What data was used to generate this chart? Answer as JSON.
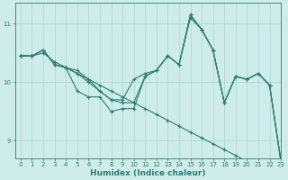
{
  "background_color": "#ceecea",
  "grid_color": "#aed8d5",
  "line_color": "#2e7d6e",
  "xlabel": "Humidex (Indice chaleur)",
  "xlim": [
    -0.5,
    23
  ],
  "ylim": [
    8.7,
    11.35
  ],
  "yticks": [
    9,
    10,
    11
  ],
  "xticks": [
    0,
    1,
    2,
    3,
    4,
    5,
    6,
    7,
    8,
    9,
    10,
    11,
    12,
    13,
    14,
    15,
    16,
    17,
    18,
    19,
    20,
    21,
    22,
    23
  ],
  "series": [
    {
      "x": [
        0,
        1,
        2,
        3,
        4,
        5,
        6,
        7,
        8,
        9,
        10,
        11,
        12,
        13,
        14,
        15,
        16,
        17,
        18,
        19,
        20,
        21,
        22,
        23
      ],
      "y": [
        10.45,
        10.45,
        10.5,
        10.35,
        10.25,
        10.15,
        10.05,
        9.95,
        9.85,
        9.75,
        9.65,
        9.55,
        9.45,
        9.35,
        9.25,
        9.15,
        9.05,
        8.95,
        8.85,
        8.75,
        8.65,
        8.65,
        8.65,
        8.65
      ]
    },
    {
      "x": [
        0,
        1,
        2,
        3,
        4,
        5,
        6,
        7,
        8,
        9,
        10,
        11,
        12,
        13,
        14,
        15,
        16,
        17,
        18,
        19,
        20,
        21,
        22,
        23
      ],
      "y": [
        10.45,
        10.45,
        10.55,
        10.3,
        10.25,
        10.2,
        10.05,
        9.85,
        9.7,
        9.7,
        10.05,
        10.15,
        10.2,
        10.45,
        10.3,
        11.1,
        10.9,
        10.55,
        9.65,
        10.1,
        10.05,
        10.15,
        9.95,
        8.65
      ]
    },
    {
      "x": [
        0,
        1,
        2,
        3,
        4,
        5,
        6,
        7,
        8,
        9,
        10,
        11,
        12,
        13,
        14,
        15,
        16,
        17,
        18,
        19,
        20,
        21,
        22,
        23
      ],
      "y": [
        10.45,
        10.45,
        10.55,
        10.3,
        10.25,
        10.15,
        10.0,
        9.85,
        9.7,
        9.65,
        9.65,
        10.1,
        10.2,
        10.45,
        10.3,
        11.15,
        10.9,
        10.55,
        9.65,
        10.1,
        10.05,
        10.15,
        9.95,
        8.65
      ]
    },
    {
      "x": [
        0,
        1,
        2,
        3,
        4,
        5,
        6,
        7,
        8,
        9,
        10,
        11,
        12,
        13,
        14,
        15,
        16,
        17,
        18,
        19,
        20,
        21,
        22,
        23
      ],
      "y": [
        10.45,
        10.45,
        10.55,
        10.3,
        10.25,
        9.85,
        9.75,
        9.75,
        9.5,
        9.55,
        9.55,
        10.1,
        10.2,
        10.45,
        10.3,
        11.15,
        10.9,
        10.55,
        9.65,
        10.1,
        10.05,
        10.15,
        9.95,
        8.65
      ]
    }
  ],
  "marker": "+",
  "markersize": 3,
  "linewidth": 0.8
}
